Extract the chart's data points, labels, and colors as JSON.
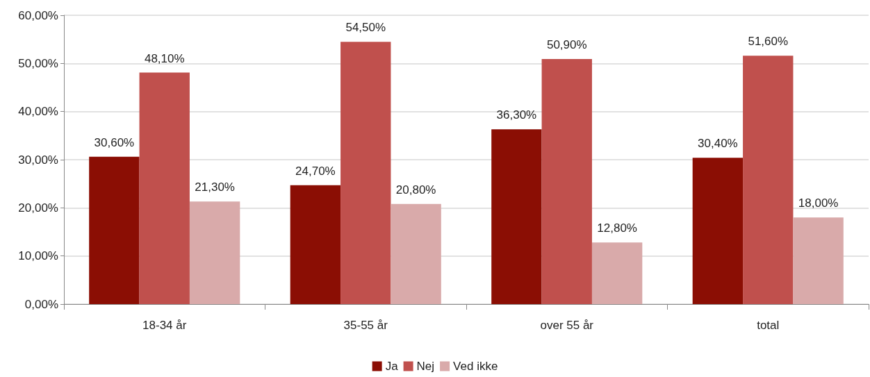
{
  "chart_data": {
    "type": "bar",
    "categories": [
      "18-34 år",
      "35-55 år",
      "over 55 år",
      "total"
    ],
    "series": [
      {
        "name": "Ja",
        "color": "#8b0e04",
        "values": [
          30.6,
          24.7,
          36.3,
          30.4
        ],
        "value_labels": [
          "30,60%",
          "24,70%",
          "36,30%",
          "30,40%"
        ]
      },
      {
        "name": "Nej",
        "color": "#c0504d",
        "values": [
          48.1,
          54.5,
          50.9,
          51.6
        ],
        "value_labels": [
          "48,10%",
          "54,50%",
          "50,90%",
          "51,60%"
        ]
      },
      {
        "name": "Ved ikke",
        "color": "#d9aaaa",
        "values": [
          21.3,
          20.8,
          12.8,
          18.0
        ],
        "value_labels": [
          "21,30%",
          "20,80%",
          "12,80%",
          "18,00%"
        ]
      }
    ],
    "ylim": [
      0,
      60
    ],
    "yticks": [
      {
        "value": 0,
        "label": "0,00%"
      },
      {
        "value": 10,
        "label": "10,00%"
      },
      {
        "value": 20,
        "label": "20,00%"
      },
      {
        "value": 30,
        "label": "30,00%"
      },
      {
        "value": 40,
        "label": "40,00%"
      },
      {
        "value": 50,
        "label": "50,00%"
      },
      {
        "value": 60,
        "label": "60,00%"
      }
    ],
    "grid": "y",
    "legend": "bottom"
  }
}
